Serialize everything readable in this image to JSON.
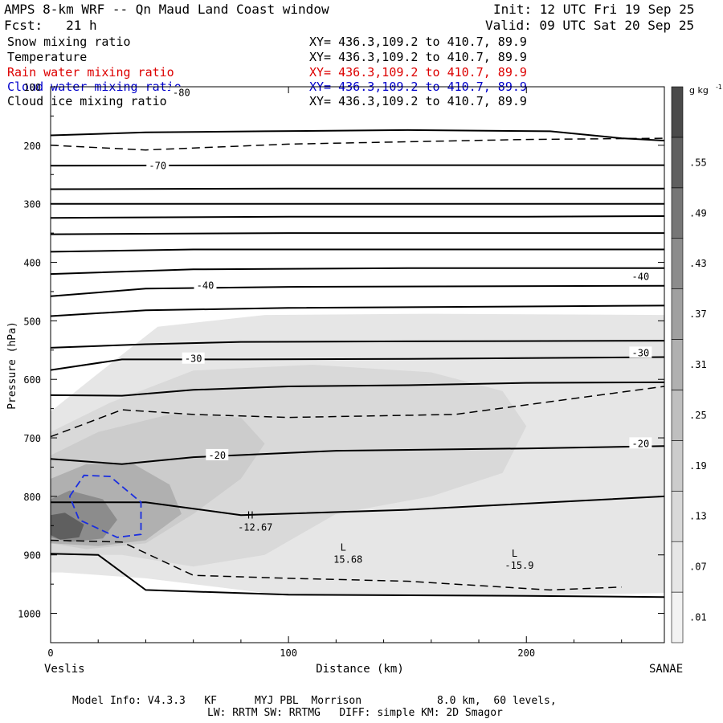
{
  "header": {
    "title": "AMPS 8-km WRF -- Qn Maud Land Coast window",
    "init": "Init: 12 UTC Fri 19 Sep 25",
    "fcst": "Fcst:   21 h",
    "valid": "Valid: 09 UTC Sat 20 Sep 25"
  },
  "fields": [
    {
      "name": "Snow mixing ratio",
      "xy": "XY= 436.3,109.2 to 410.7, 89.9",
      "color": "#000000"
    },
    {
      "name": "Temperature",
      "xy": "XY= 436.3,109.2 to 410.7, 89.9",
      "color": "#000000"
    },
    {
      "name": "Rain water mixing ratio",
      "xy": "XY= 436.3,109.2 to 410.7, 89.9",
      "color": "#dd0000"
    },
    {
      "name": "Cloud water mixing ratio",
      "xy": "XY= 436.3,109.2 to 410.7, 89.9",
      "color": "#0000cc"
    },
    {
      "name": "Cloud ice mixing ratio",
      "xy": "XY= 436.3,109.2 to 410.7, 89.9",
      "color": "#000000"
    }
  ],
  "footer": {
    "line1": "Model Info: V4.3.3   KF      MYJ PBL  Morrison            8.0 km,  60 levels,",
    "line2": "LW: RRTM SW: RRTMG   DIFF: simple KM: 2D Smagor"
  },
  "chart_data": {
    "type": "cross-section",
    "ylabel": "Pressure (hPa)",
    "xlabel": "Distance (km)",
    "xlim": [
      0,
      258
    ],
    "ylim": [
      1050,
      100
    ],
    "y_log_scale": false,
    "xticks": [
      0,
      100,
      200
    ],
    "yticks": [
      100,
      200,
      300,
      400,
      500,
      600,
      700,
      800,
      900,
      1000
    ],
    "x_endpoints": {
      "left": "Veslis",
      "right": "SANAE"
    },
    "colorbar": {
      "unit": "g kg",
      "unit_exponent": "-1",
      "levels": [
        ".01",
        ".07",
        ".13",
        ".19",
        ".25",
        ".31",
        ".37",
        ".43",
        ".49",
        ".55"
      ],
      "colors": [
        "#f2f2f2",
        "#e6e6e6",
        "#d9d9d9",
        "#cccccc",
        "#bfbfbf",
        "#b0b0b0",
        "#a0a0a0",
        "#8c8c8c",
        "#767676",
        "#5f5f5f",
        "#4a4a4a"
      ]
    },
    "temperature_labels": [
      {
        "text": "-80",
        "x": 55,
        "y": 110
      },
      {
        "text": "-70",
        "x": 45,
        "y": 235
      },
      {
        "text": "-40",
        "x": 65,
        "y": 440
      },
      {
        "text": "-40",
        "x": 248,
        "y": 425
      },
      {
        "text": "-30",
        "x": 60,
        "y": 565
      },
      {
        "text": "-30",
        "x": 248,
        "y": 555
      },
      {
        "text": "-20",
        "x": 70,
        "y": 730
      },
      {
        "text": "-20",
        "x": 248,
        "y": 710
      }
    ],
    "extrema": [
      {
        "letter": "H",
        "value": "-12.67",
        "x": 84,
        "y": 838
      },
      {
        "letter": "L",
        "value": "15.68",
        "x": 123,
        "y": 893
      },
      {
        "letter": "L",
        "value": "-15.9",
        "x": 195,
        "y": 903
      }
    ],
    "temperature_contours": [
      [
        [
          0,
          183
        ],
        [
          40,
          178
        ],
        [
          90,
          176
        ],
        [
          150,
          174
        ],
        [
          210,
          176
        ],
        [
          240,
          188
        ],
        [
          258,
          192
        ]
      ],
      [
        [
          0,
          235
        ],
        [
          100,
          234
        ],
        [
          200,
          234
        ],
        [
          258,
          234
        ]
      ],
      [
        [
          0,
          275
        ],
        [
          100,
          274
        ],
        [
          200,
          274
        ],
        [
          258,
          274
        ]
      ],
      [
        [
          0,
          300
        ],
        [
          100,
          300
        ],
        [
          200,
          300
        ],
        [
          258,
          300
        ]
      ],
      [
        [
          0,
          324
        ],
        [
          100,
          322
        ],
        [
          200,
          322
        ],
        [
          258,
          321
        ]
      ],
      [
        [
          0,
          352
        ],
        [
          100,
          350
        ],
        [
          200,
          350
        ],
        [
          258,
          350
        ]
      ],
      [
        [
          0,
          382
        ],
        [
          60,
          378
        ],
        [
          150,
          378
        ],
        [
          258,
          378
        ]
      ],
      [
        [
          0,
          420
        ],
        [
          60,
          412
        ],
        [
          150,
          410
        ],
        [
          258,
          410
        ]
      ],
      [
        [
          0,
          458
        ],
        [
          40,
          445
        ],
        [
          100,
          442
        ],
        [
          258,
          440
        ]
      ],
      [
        [
          0,
          492
        ],
        [
          40,
          482
        ],
        [
          100,
          478
        ],
        [
          258,
          474
        ]
      ],
      [
        [
          0,
          546
        ],
        [
          40,
          540
        ],
        [
          80,
          536
        ],
        [
          150,
          535
        ],
        [
          258,
          534
        ]
      ],
      [
        [
          0,
          584
        ],
        [
          30,
          566
        ],
        [
          80,
          566
        ],
        [
          150,
          565
        ],
        [
          258,
          562
        ]
      ],
      [
        [
          0,
          627
        ],
        [
          30,
          628
        ],
        [
          60,
          618
        ],
        [
          100,
          612
        ],
        [
          150,
          610
        ],
        [
          200,
          606
        ],
        [
          258,
          605
        ]
      ],
      [
        [
          0,
          736
        ],
        [
          30,
          745
        ],
        [
          60,
          733
        ],
        [
          120,
          722
        ],
        [
          200,
          718
        ],
        [
          258,
          714
        ]
      ],
      [
        [
          0,
          810
        ],
        [
          40,
          810
        ],
        [
          80,
          832
        ],
        [
          150,
          823
        ],
        [
          258,
          800
        ]
      ],
      [
        [
          0,
          898
        ],
        [
          20,
          900
        ],
        [
          40,
          960
        ],
        [
          100,
          968
        ],
        [
          200,
          970
        ],
        [
          258,
          972
        ]
      ]
    ],
    "snow_contours": [
      [
        [
          0,
          200
        ],
        [
          40,
          208
        ],
        [
          100,
          198
        ],
        [
          200,
          190
        ],
        [
          258,
          188
        ]
      ],
      [
        [
          0,
          698
        ],
        [
          30,
          652
        ],
        [
          60,
          660
        ],
        [
          100,
          665
        ],
        [
          170,
          660
        ],
        [
          258,
          612
        ]
      ],
      [
        [
          0,
          875
        ],
        [
          30,
          878
        ],
        [
          60,
          935
        ],
        [
          100,
          940
        ],
        [
          150,
          945
        ],
        [
          210,
          960
        ],
        [
          240,
          955
        ]
      ]
    ],
    "cloud_water_contour": [
      [
        8,
        800
      ],
      [
        14,
        764
      ],
      [
        25,
        766
      ],
      [
        38,
        810
      ],
      [
        38,
        865
      ],
      [
        28,
        870
      ],
      [
        12,
        840
      ],
      [
        8,
        800
      ]
    ],
    "shading": [
      {
        "level": 1,
        "points": [
          [
            0,
            655
          ],
          [
            20,
            590
          ],
          [
            45,
            510
          ],
          [
            90,
            490
          ],
          [
            160,
            488
          ],
          [
            258,
            490
          ],
          [
            258,
            965
          ],
          [
            200,
            970
          ],
          [
            100,
            970
          ],
          [
            40,
            940
          ],
          [
            5,
            930
          ],
          [
            0,
            930
          ]
        ]
      },
      {
        "level": 2,
        "points": [
          [
            0,
            690
          ],
          [
            25,
            640
          ],
          [
            60,
            585
          ],
          [
            110,
            575
          ],
          [
            160,
            588
          ],
          [
            190,
            620
          ],
          [
            200,
            680
          ],
          [
            190,
            760
          ],
          [
            160,
            800
          ],
          [
            120,
            830
          ],
          [
            90,
            900
          ],
          [
            60,
            920
          ],
          [
            30,
            900
          ],
          [
            0,
            900
          ]
        ]
      },
      {
        "level": 3,
        "points": [
          [
            0,
            730
          ],
          [
            20,
            690
          ],
          [
            50,
            660
          ],
          [
            80,
            665
          ],
          [
            90,
            710
          ],
          [
            80,
            770
          ],
          [
            60,
            830
          ],
          [
            40,
            880
          ],
          [
            15,
            890
          ],
          [
            0,
            880
          ]
        ]
      },
      {
        "level": 5,
        "points": [
          [
            0,
            770
          ],
          [
            15,
            745
          ],
          [
            35,
            745
          ],
          [
            50,
            780
          ],
          [
            55,
            830
          ],
          [
            40,
            875
          ],
          [
            20,
            885
          ],
          [
            0,
            880
          ]
        ]
      },
      {
        "level": 7,
        "points": [
          [
            0,
            805
          ],
          [
            8,
            790
          ],
          [
            22,
            805
          ],
          [
            28,
            840
          ],
          [
            22,
            872
          ],
          [
            8,
            878
          ],
          [
            0,
            870
          ]
        ]
      },
      {
        "level": 9,
        "points": [
          [
            0,
            832
          ],
          [
            6,
            828
          ],
          [
            14,
            848
          ],
          [
            12,
            870
          ],
          [
            4,
            874
          ],
          [
            0,
            866
          ]
        ]
      }
    ]
  }
}
